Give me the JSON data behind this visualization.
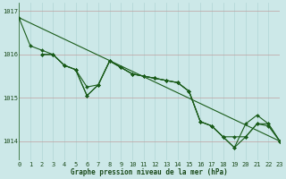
{
  "background_color": "#cce8e8",
  "grid_color_v": "#b0d4d4",
  "grid_color_h": "#c0a0a0",
  "line_color": "#1a5c1a",
  "ylabel_values": [
    1014,
    1015,
    1016,
    1017
  ],
  "xlabel_values": [
    0,
    1,
    2,
    3,
    4,
    5,
    6,
    7,
    8,
    9,
    10,
    11,
    12,
    13,
    14,
    15,
    16,
    17,
    18,
    19,
    20,
    21,
    22,
    23
  ],
  "xlabel_label": "Graphe pression niveau de la mer (hPa)",
  "xlim": [
    0,
    23
  ],
  "ylim": [
    1013.55,
    1017.2
  ],
  "lines": [
    {
      "x": [
        0,
        1,
        2,
        3,
        4,
        5,
        6,
        7,
        8,
        9,
        10,
        11,
        12,
        13,
        14,
        15,
        16,
        17,
        18,
        19,
        20,
        21,
        22,
        23
      ],
      "y": [
        1016.85,
        1016.2,
        1016.1,
        1016.0,
        1015.75,
        1015.65,
        1015.25,
        1015.3,
        1015.85,
        1015.7,
        1015.55,
        1015.5,
        1015.45,
        1015.4,
        1015.35,
        1015.15,
        1014.45,
        1014.35,
        1014.1,
        1014.1,
        1014.1,
        1014.4,
        1014.35,
        1014.0
      ],
      "has_markers": true
    },
    {
      "x": [
        2,
        3,
        4,
        5,
        6,
        7,
        8,
        9,
        10,
        11,
        12,
        13,
        14,
        15,
        16,
        17,
        18,
        19,
        20,
        21,
        22,
        23
      ],
      "y": [
        1016.0,
        1016.0,
        1015.75,
        1015.65,
        1015.05,
        1015.3,
        1015.85,
        1015.7,
        1015.55,
        1015.5,
        1015.45,
        1015.4,
        1015.35,
        1015.15,
        1014.45,
        1014.35,
        1014.1,
        1013.85,
        1014.1,
        1014.4,
        1014.4,
        1014.0
      ],
      "has_markers": true
    },
    {
      "x": [
        2,
        3,
        4,
        5,
        6,
        7,
        8,
        9,
        10,
        11,
        12,
        13,
        14,
        15,
        16,
        17,
        18,
        19,
        20,
        21,
        22,
        23
      ],
      "y": [
        1016.0,
        1016.0,
        1015.75,
        1015.65,
        1015.05,
        1015.3,
        1015.85,
        1015.7,
        1015.55,
        1015.5,
        1015.45,
        1015.4,
        1015.35,
        1015.15,
        1014.45,
        1014.35,
        1014.1,
        1013.85,
        1014.4,
        1014.6,
        1014.4,
        1014.0
      ],
      "has_markers": true
    },
    {
      "x": [
        0,
        23
      ],
      "y": [
        1016.85,
        1014.0
      ],
      "has_markers": false
    }
  ],
  "marker": "D",
  "marker_size": 2.0,
  "linewidth": 0.8,
  "tick_fontsize": 5,
  "xlabel_fontsize": 5.5
}
